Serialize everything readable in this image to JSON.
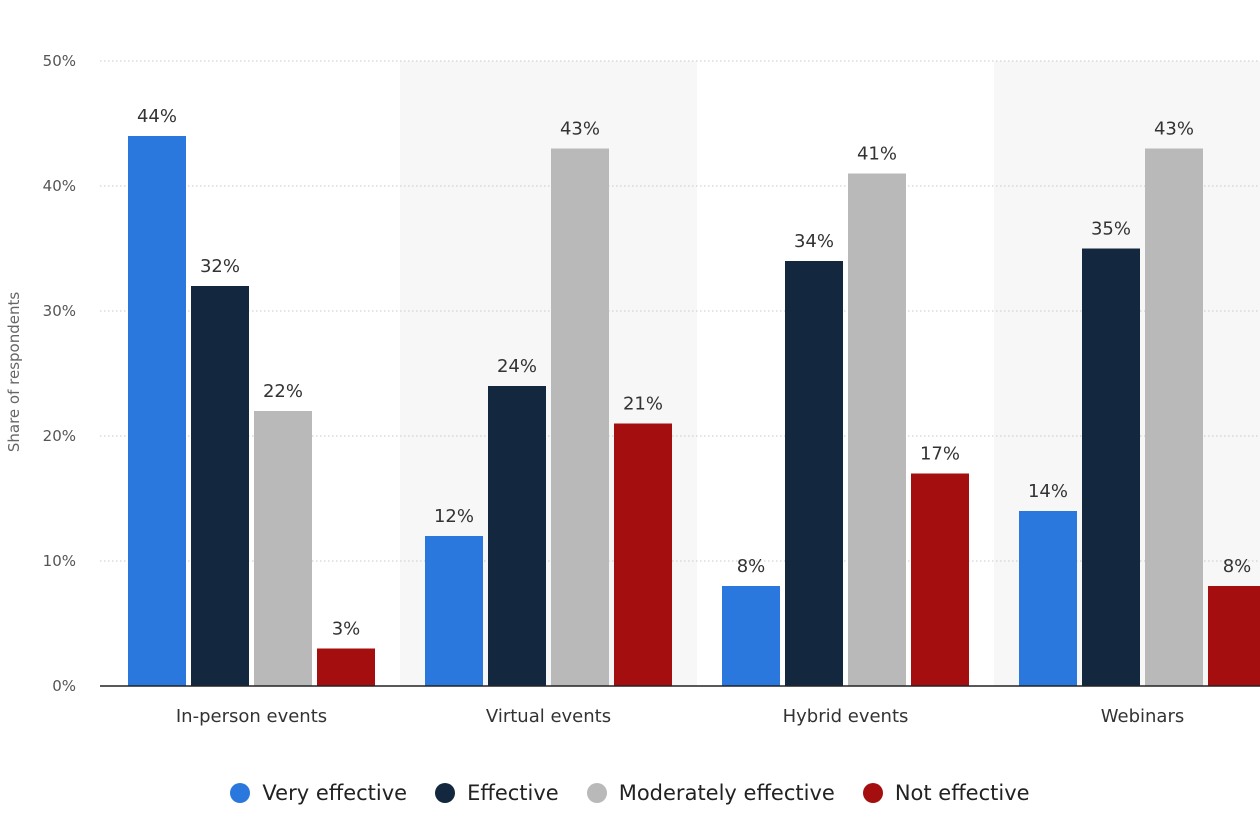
{
  "chart_data": {
    "type": "bar",
    "title": "",
    "xlabel": "",
    "ylabel": "Share of respondents",
    "ylim": [
      0,
      50
    ],
    "yticks": [
      "0%",
      "10%",
      "20%",
      "30%",
      "40%",
      "50%"
    ],
    "ytick_values": [
      0,
      10,
      20,
      30,
      40,
      50
    ],
    "grid": true,
    "categories": [
      "In-person events",
      "Virtual events",
      "Hybrid events",
      "Webinars"
    ],
    "series": [
      {
        "name": "Very effective",
        "color": "#2a77dd",
        "values": [
          44,
          12,
          8,
          14
        ],
        "labels": [
          "44%",
          "12%",
          "8%",
          "14%"
        ]
      },
      {
        "name": "Effective",
        "color": "#13283e",
        "values": [
          32,
          24,
          34,
          35
        ],
        "labels": [
          "32%",
          "24%",
          "34%",
          "35%"
        ]
      },
      {
        "name": "Moderately effective",
        "color": "#b9b9b9",
        "values": [
          22,
          43,
          41,
          43
        ],
        "labels": [
          "22%",
          "43%",
          "41%",
          "43%"
        ]
      },
      {
        "name": "Not effective",
        "color": "#a40e0e",
        "values": [
          3,
          21,
          17,
          8
        ],
        "labels": [
          "3%",
          "21%",
          "17%",
          "8%"
        ]
      }
    ],
    "legend_position": "bottom"
  }
}
